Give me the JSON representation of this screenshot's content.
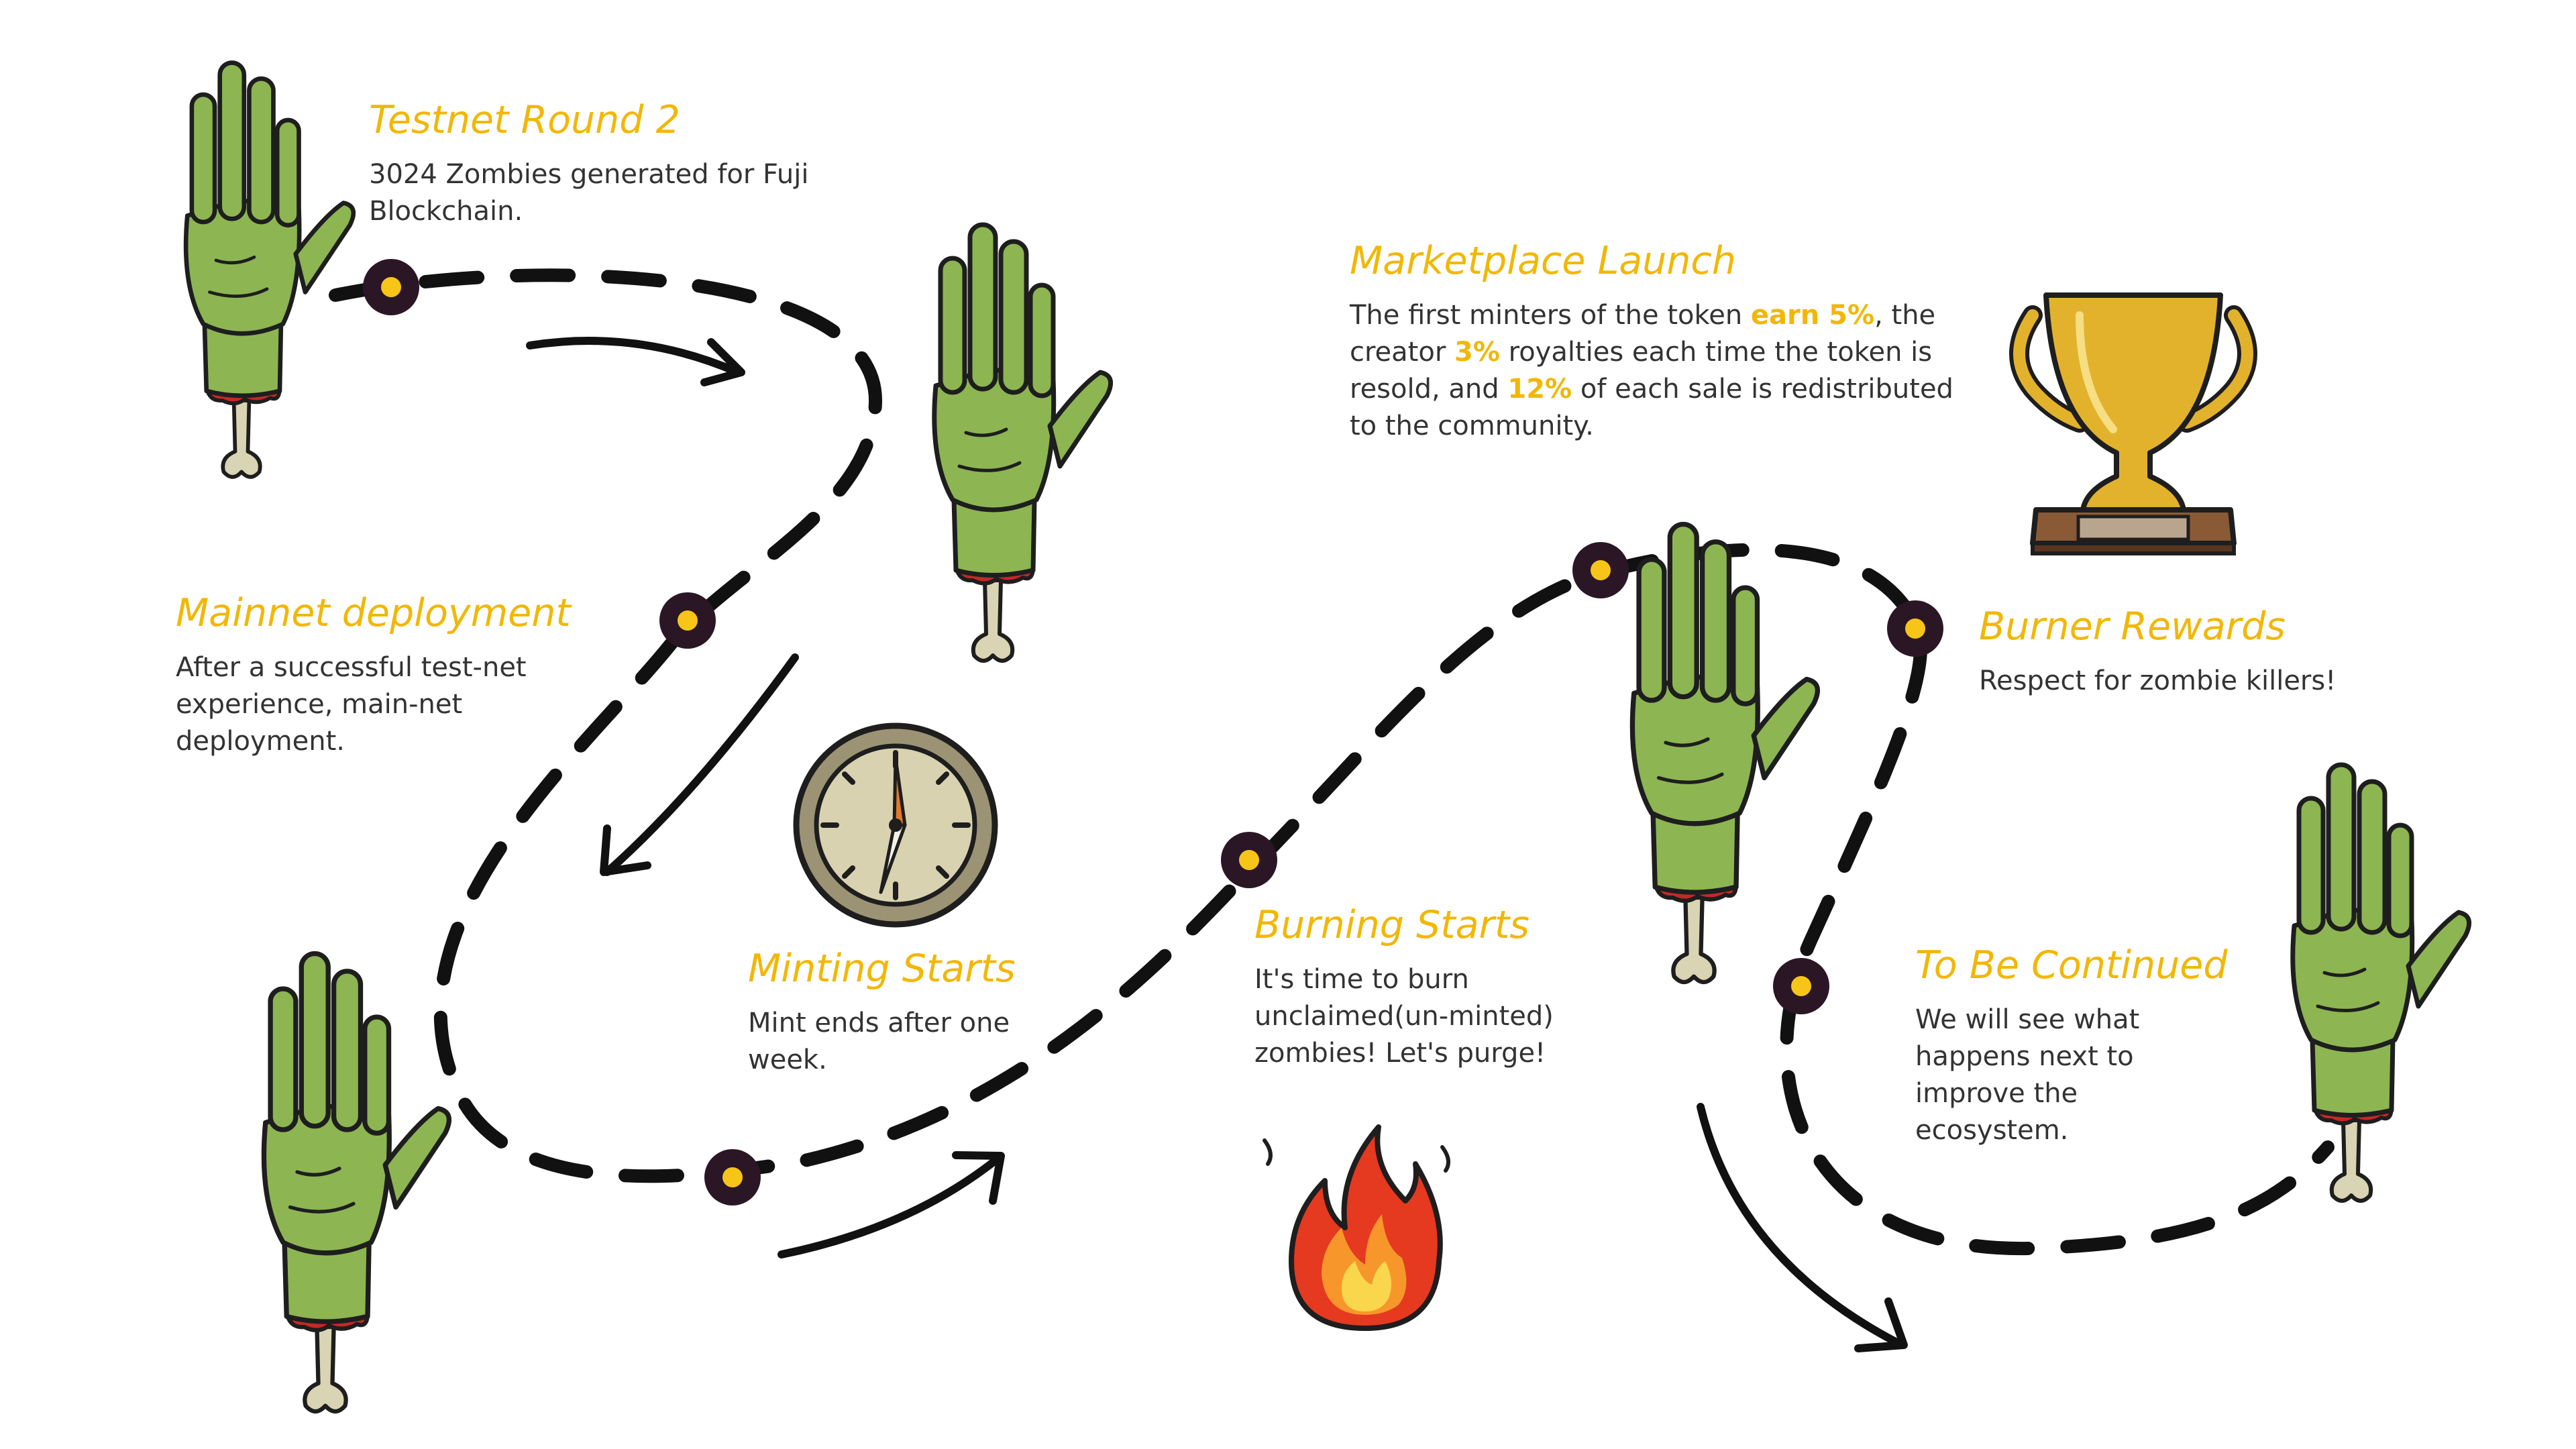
{
  "colors": {
    "title": "#F2B705",
    "text": "#333333",
    "path": "#111111",
    "marker_ring": "#2B1626",
    "marker_dot": "#F7C518",
    "zombie_skin": "#8DB552",
    "zombie_outline": "#1E1E1E",
    "wound": "#C62828",
    "bone": "#D9D4B4",
    "trophy_gold": "#E3B22C",
    "trophy_base": "#6B4226",
    "fire_red": "#E53920",
    "fire_yellow": "#F9D64C"
  },
  "icons": [
    "zombie-hand-icon",
    "compass-icon",
    "fire-icon",
    "trophy-icon"
  ],
  "milestones": {
    "testnet": {
      "title": "Testnet Round 2",
      "desc": "3024 Zombies generated for Fuji Blockchain."
    },
    "mainnet": {
      "title": "Mainnet deployment",
      "desc": "After a successful test-net experience, main-net deployment."
    },
    "minting": {
      "title": "Minting Starts",
      "desc": "Mint ends after one week."
    },
    "marketplace": {
      "title": "Marketplace Launch",
      "desc_1": "The first minters of the token ",
      "hl_1": "earn 5%",
      "desc_2": ", the creator ",
      "hl_2": "3%",
      "desc_3": " royalties each time the token is resold, and ",
      "hl_3": "12%",
      "desc_4": " of each sale is redistributed to the community."
    },
    "burning": {
      "title": "Burning Starts",
      "desc": "It's time to burn unclaimed(un-minted) zombies! Let's purge!"
    },
    "burner": {
      "title": "Burner Rewards",
      "desc": "Respect for zombie killers!"
    },
    "continued": {
      "title": "To Be Continued",
      "desc": "We will see what happens next to improve the ecosystem."
    }
  }
}
